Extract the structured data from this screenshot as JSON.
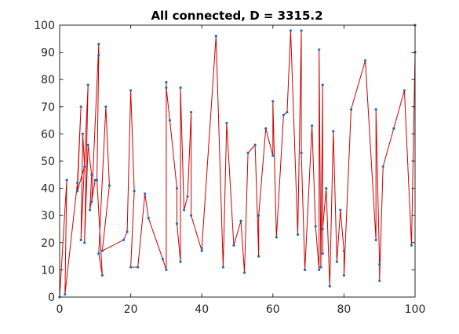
{
  "chart_data": {
    "type": "line",
    "title": "All connected, D = 3315.2",
    "xlabel": "",
    "ylabel": "",
    "xlim": [
      0,
      100
    ],
    "ylim": [
      0,
      100
    ],
    "xticks": [
      0,
      20,
      40,
      60,
      80,
      100
    ],
    "yticks": [
      0,
      10,
      20,
      30,
      40,
      50,
      60,
      70,
      80,
      90,
      100
    ],
    "grid": false,
    "legend": "none",
    "line_color": "#cc0000",
    "marker_color": "#1f6fb4",
    "series": [
      {
        "x": [
          0,
          2,
          1.5,
          5,
          6,
          5,
          7,
          6.5,
          6,
          8,
          7,
          8,
          9,
          8.5,
          10,
          9,
          11,
          11,
          10.5,
          12,
          11,
          13,
          14,
          12,
          18,
          19,
          20,
          21,
          20,
          22,
          24,
          25,
          29,
          30,
          30,
          30,
          31,
          33,
          33,
          34,
          34,
          35,
          36,
          37,
          37,
          40,
          40,
          44,
          46,
          47,
          49,
          51,
          52,
          53,
          55,
          56,
          56,
          58,
          60,
          60,
          61,
          63,
          64,
          65,
          67,
          68,
          68,
          69,
          71,
          72,
          73,
          73,
          73.5,
          74,
          74,
          74,
          75,
          76,
          77,
          78,
          79,
          80,
          80,
          82,
          86,
          89,
          89,
          90,
          90,
          91,
          94,
          97,
          99,
          100,
          100
        ],
        "y": [
          0,
          43,
          1,
          42,
          70,
          39,
          48,
          60,
          21,
          78,
          20,
          56,
          45,
          32,
          43,
          35,
          93,
          89,
          43,
          8,
          16,
          70,
          41,
          17,
          21,
          24,
          76,
          39,
          11,
          11,
          38,
          29,
          14,
          10,
          79,
          77,
          65,
          40,
          27,
          13,
          77,
          32,
          37,
          68,
          30,
          17,
          18,
          96,
          11,
          64,
          19,
          28,
          9,
          53,
          56,
          15,
          30,
          62,
          52,
          72,
          22,
          67,
          68,
          98,
          23,
          98,
          53,
          10,
          63,
          26,
          10,
          91,
          11,
          78,
          16,
          25,
          40,
          4,
          61,
          13,
          32,
          17,
          8,
          69,
          87,
          21,
          69,
          12,
          6,
          48,
          62,
          76,
          19,
          90,
          100
        ]
      }
    ]
  }
}
